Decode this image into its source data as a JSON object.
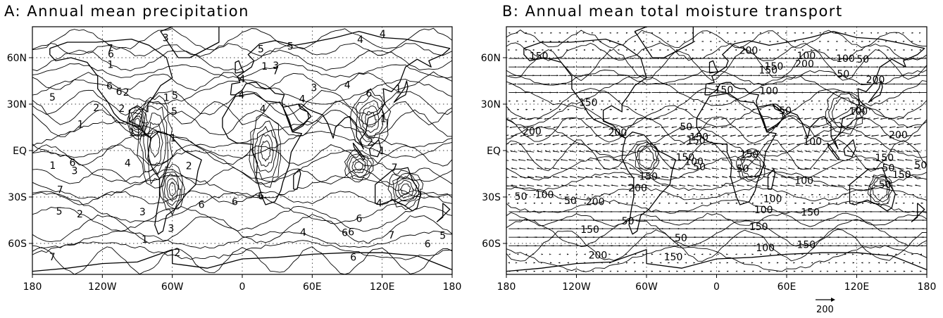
{
  "panels": [
    {
      "id": "A",
      "title": "A: Annual mean precipitation",
      "x_ticks": [
        "180",
        "120W",
        "60W",
        "0",
        "60E",
        "120E",
        "180"
      ],
      "y_ticks": [
        "60N",
        "30N",
        "EQ",
        "30S",
        "60S"
      ],
      "contour_labels": [
        "1",
        "2",
        "3",
        "4",
        "5",
        "6",
        "7"
      ]
    },
    {
      "id": "B",
      "title": "B: Annual mean total moisture transport",
      "x_ticks": [
        "180",
        "120W",
        "60W",
        "0",
        "60E",
        "120E",
        "180"
      ],
      "y_ticks": [
        "60N",
        "30N",
        "EQ",
        "30S",
        "60S"
      ],
      "contour_labels": [
        "50",
        "100",
        "150",
        "200"
      ],
      "reference_vector_label": "200"
    }
  ]
}
